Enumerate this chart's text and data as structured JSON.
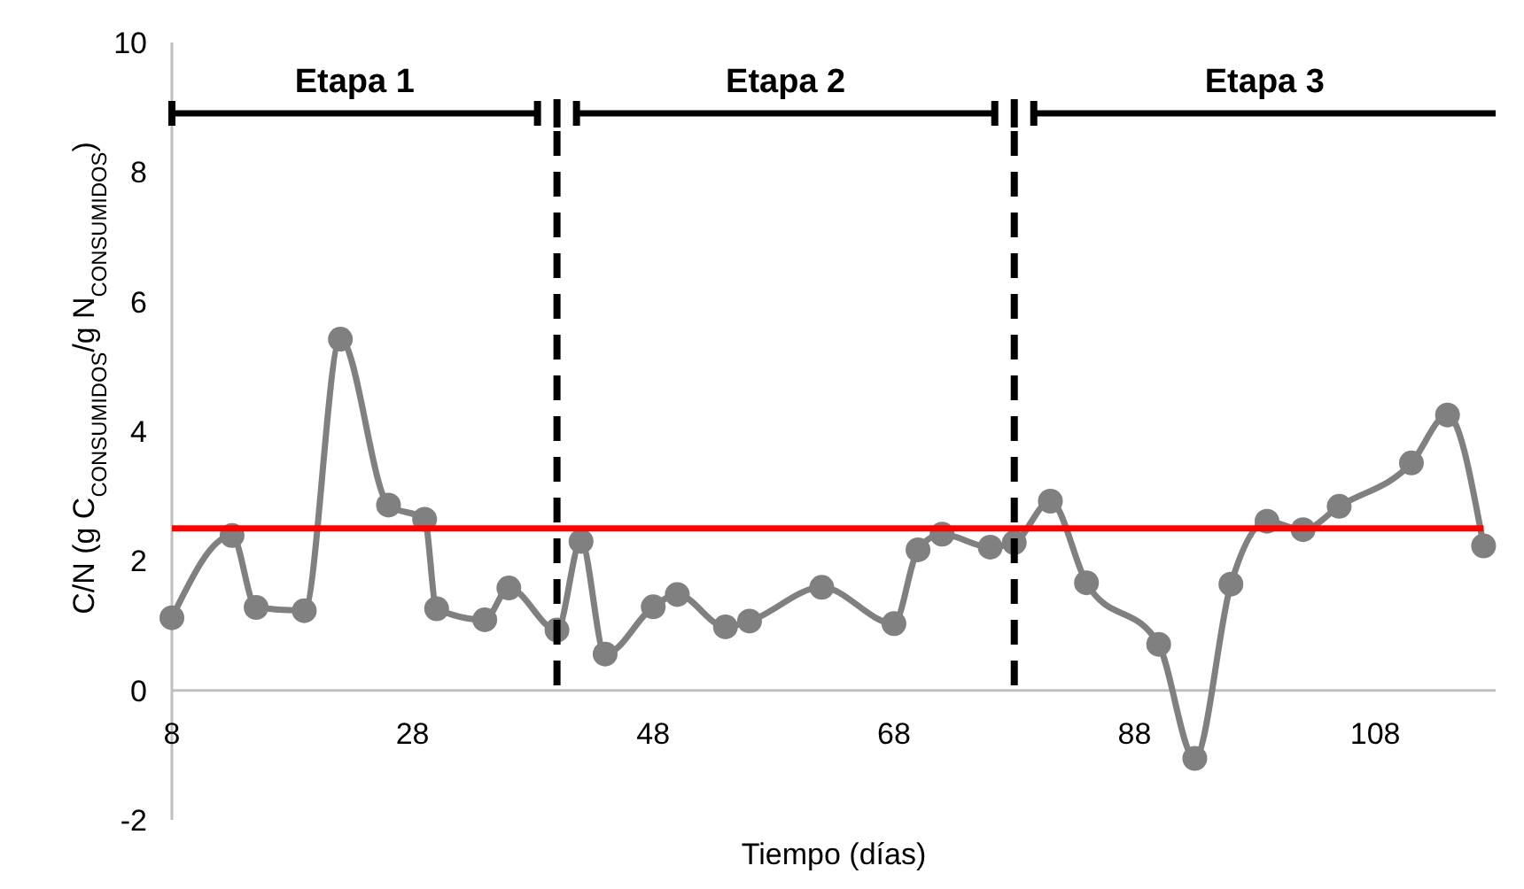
{
  "chart_data": {
    "type": "line",
    "xlabel": "Tiempo (días)",
    "ylabel": "C/N (g C$_{CONSUMIDOS}$/g N$_{CONSUMIDOS}$)",
    "x": [
      8,
      13,
      15,
      19,
      22,
      26,
      29,
      30,
      34,
      36,
      40,
      42,
      44,
      48,
      50,
      54,
      56,
      62,
      68,
      70,
      72,
      76,
      78,
      81,
      84,
      90,
      93,
      96,
      99,
      102,
      105,
      111,
      114,
      117
    ],
    "series": [
      {
        "color": "#808080",
        "values": [
          1.12,
          2.39,
          1.28,
          1.23,
          5.42,
          2.86,
          2.64,
          1.26,
          1.09,
          1.58,
          0.93,
          2.3,
          0.56,
          1.29,
          1.48,
          0.98,
          1.07,
          1.59,
          1.03,
          2.17,
          2.41,
          2.21,
          2.28,
          2.92,
          1.66,
          0.71,
          -1.05,
          1.64,
          2.61,
          2.48,
          2.84,
          3.51,
          4.25,
          2.23
        ]
      }
    ],
    "xlim": [
      8,
      118
    ],
    "xticks": [
      8,
      28,
      48,
      68,
      88,
      108
    ],
    "ylim": [
      -2,
      10
    ],
    "yticks": [
      -2,
      0,
      2,
      4,
      6,
      8,
      10
    ],
    "grid": false,
    "marker": "circle",
    "line_style": "solid",
    "ref_lines": [
      {
        "axis": "y",
        "value": 2.5,
        "color": "#ff0000",
        "line_style": "solid"
      },
      {
        "axis": "x",
        "value": 40,
        "color": "#000000",
        "line_style": "dashed"
      },
      {
        "axis": "x",
        "value": 78,
        "color": "#000000",
        "line_style": "dashed"
      }
    ],
    "annotations": [
      "Etapa 1",
      "Etapa 2",
      "Etapa 3"
    ]
  }
}
